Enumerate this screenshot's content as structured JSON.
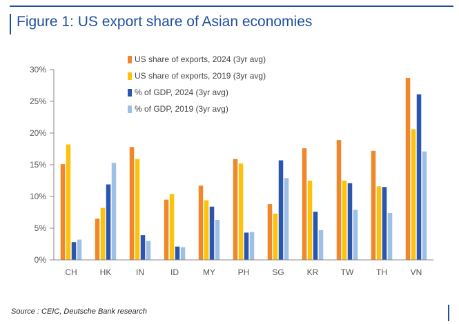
{
  "title": "Figure 1: US export share of Asian economies",
  "source": "Source : CEIC, Deutsche Bank research",
  "chart_data": {
    "type": "bar",
    "categories": [
      "CH",
      "HK",
      "IN",
      "ID",
      "MY",
      "PH",
      "SG",
      "KR",
      "TW",
      "TH",
      "VN"
    ],
    "series": [
      {
        "name": "US share of exports, 2024 (3yr avg)",
        "color": "#f0872a",
        "values": [
          15.1,
          6.5,
          17.8,
          9.5,
          11.7,
          15.9,
          8.8,
          17.6,
          18.9,
          17.2,
          28.7
        ]
      },
      {
        "name": "US share of exports, 2019 (3yr avg)",
        "color": "#fdc20c",
        "values": [
          18.2,
          8.2,
          15.9,
          10.4,
          9.4,
          15.2,
          7.3,
          12.5,
          12.5,
          11.6,
          20.6
        ]
      },
      {
        "name": "% of GDP, 2024 (3yr avg)",
        "color": "#2a56b0",
        "values": [
          2.8,
          11.9,
          3.9,
          2.1,
          8.4,
          4.3,
          15.7,
          7.6,
          12.1,
          11.5,
          26.1
        ]
      },
      {
        "name": "% of GDP, 2019 (3yr avg)",
        "color": "#9fc0e6",
        "values": [
          3.2,
          15.3,
          3.0,
          2.0,
          6.3,
          4.4,
          12.9,
          4.7,
          7.9,
          7.4,
          17.1
        ]
      }
    ],
    "ylim": [
      0,
      30
    ],
    "yticks": [
      "0%",
      "5%",
      "10%",
      "15%",
      "20%",
      "25%",
      "30%"
    ],
    "ytick_values": [
      0,
      5,
      10,
      15,
      20,
      25,
      30
    ],
    "legend_position": "top-center",
    "grid": false
  }
}
